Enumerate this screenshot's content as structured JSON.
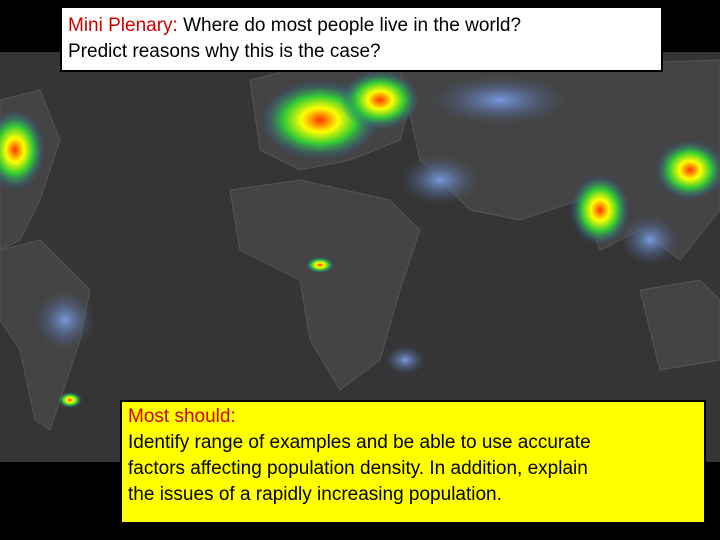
{
  "question": {
    "label": "Mini Plenary:",
    "lines": [
      "Where do most people live in the world?",
      "Predict reasons why this is the case?"
    ]
  },
  "outcome": {
    "label": "Most should:",
    "lines": [
      "Identify range of examples and be able to use accurate",
      "factors affecting population density. In addition, explain",
      "the issues of a rapidly increasing population."
    ]
  }
}
